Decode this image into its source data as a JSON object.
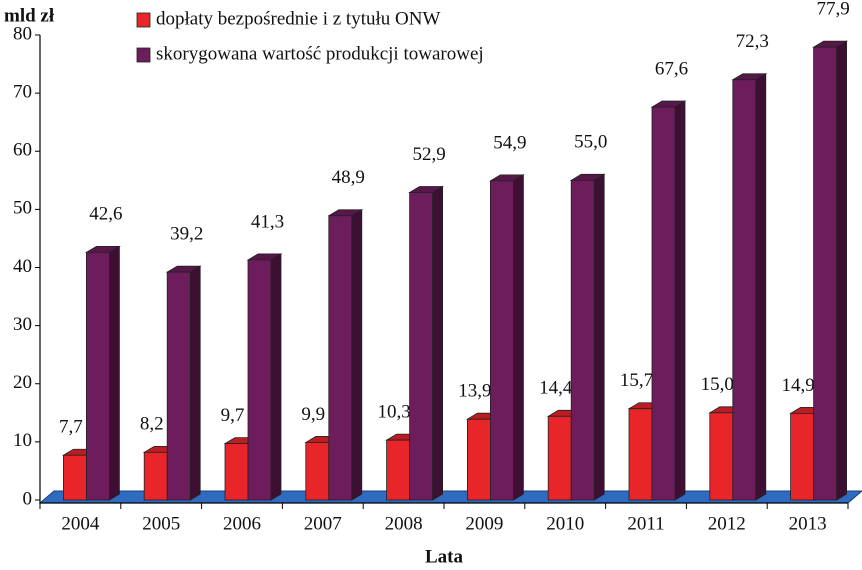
{
  "chart_data": {
    "type": "bar",
    "ylabel": "mld zł",
    "xlabel": "Lata",
    "categories": [
      "2004",
      "2005",
      "2006",
      "2007",
      "2008",
      "2009",
      "2010",
      "2011",
      "2012",
      "2013"
    ],
    "series": [
      {
        "name": "dopłaty bezpośrednie i z tytułu ONW",
        "color": "#e8262a",
        "values": [
          7.7,
          8.2,
          9.7,
          9.9,
          10.3,
          13.9,
          14.4,
          15.7,
          15.0,
          14.9
        ],
        "value_labels": [
          "7,7",
          "8,2",
          "9,7",
          "9,9",
          "10,3",
          "13,9",
          "14,4",
          "15,7",
          "15,0",
          "14,9"
        ]
      },
      {
        "name": "skorygowana wartość produkcji towarowej",
        "color": "#6e1d5c",
        "values": [
          42.6,
          39.2,
          41.3,
          48.9,
          52.9,
          54.9,
          55.0,
          67.6,
          72.3,
          77.9
        ],
        "value_labels": [
          "42,6",
          "39,2",
          "41,3",
          "48,9",
          "52,9",
          "54,9",
          "55,0",
          "67,6",
          "72,3",
          "77,9"
        ]
      }
    ],
    "ylim": [
      0,
      80
    ],
    "yticks": [
      0,
      10,
      20,
      30,
      40,
      50,
      60,
      70,
      80
    ]
  }
}
